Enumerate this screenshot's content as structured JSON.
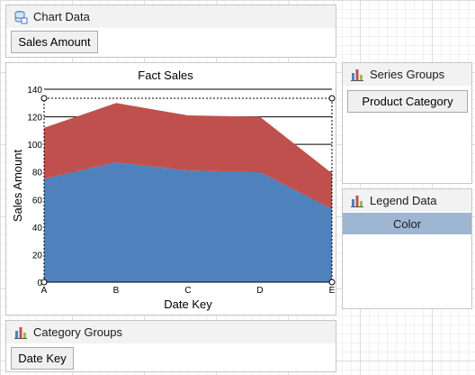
{
  "chart_data_panel": {
    "title": "Chart Data",
    "field": "Sales Amount",
    "icon": "database-icon"
  },
  "series_groups_panel": {
    "title": "Series Groups",
    "field": "Product Category",
    "icon": "bar-chart-icon"
  },
  "legend_data_panel": {
    "title": "Legend Data",
    "field": "Color",
    "icon": "bar-chart-icon"
  },
  "category_groups_panel": {
    "title": "Category Groups",
    "field": "Date Key",
    "icon": "bar-chart-icon"
  },
  "chart_data": {
    "type": "area",
    "stacked": true,
    "title": "Fact Sales",
    "xlabel": "Date Key",
    "ylabel": "Sales Amount",
    "categories": [
      "A",
      "B",
      "C",
      "D",
      "E"
    ],
    "ylim": [
      0,
      140
    ],
    "yticks": [
      0,
      20,
      40,
      60,
      80,
      100,
      120,
      140
    ],
    "grid": true,
    "series": [
      {
        "values": [
          75,
          87,
          81,
          80,
          53
        ],
        "color": "#4f81bd"
      },
      {
        "values": [
          37,
          43,
          40,
          40,
          26
        ],
        "color": "#c0504d"
      }
    ]
  }
}
